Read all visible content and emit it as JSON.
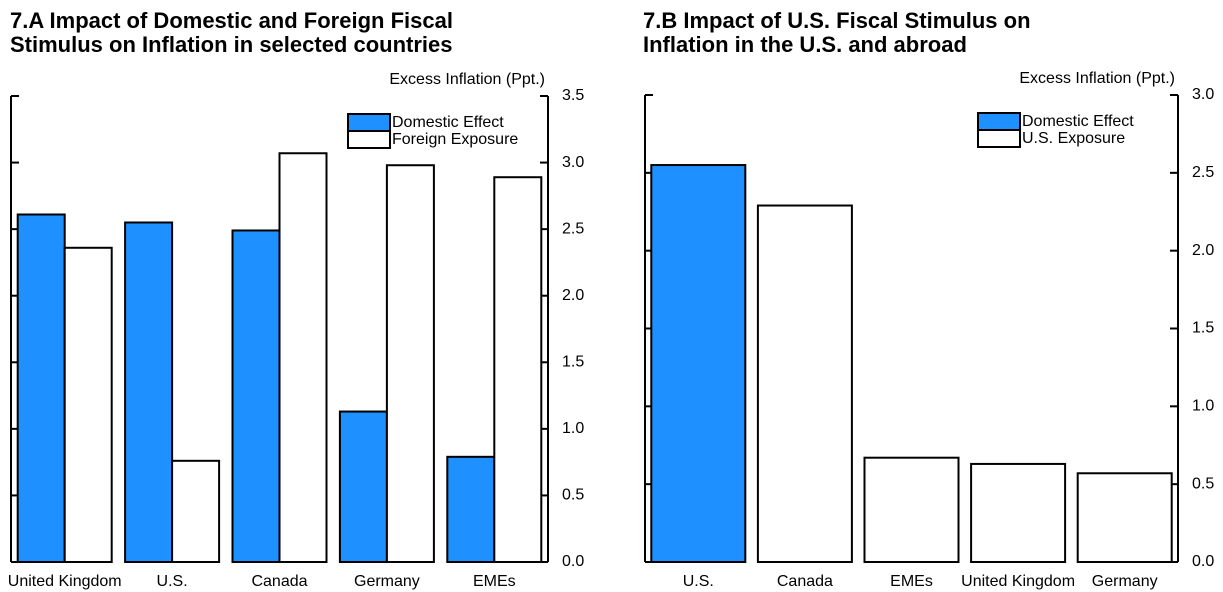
{
  "chart_data": [
    {
      "type": "bar",
      "title": [
        "7.A Impact of Domestic and Foreign Fiscal",
        "Stimulus on Inflation in selected countries"
      ],
      "ylabel": "Excess Inflation (Ppt.)",
      "categories": [
        "United Kingdom",
        "U.S.",
        "Canada",
        "Germany",
        "EMEs"
      ],
      "series": [
        {
          "name": "Domestic Effect",
          "color": "#1e90ff",
          "values": [
            2.61,
            2.55,
            2.49,
            1.13,
            0.79
          ]
        },
        {
          "name": "Foreign Exposure",
          "color": "#ffffff",
          "values": [
            2.36,
            0.76,
            3.07,
            2.98,
            2.89
          ]
        }
      ],
      "ylim": [
        0,
        3.5
      ],
      "yticks": [
        {
          "value": 0,
          "label": "0.0"
        },
        0.5,
        {
          "value": 1,
          "label": "1.0"
        },
        1.5,
        {
          "value": 2,
          "label": "2.0"
        },
        2.5,
        {
          "value": 3,
          "label": "3.0"
        },
        3.5
      ],
      "legend": "upper right"
    },
    {
      "type": "bar",
      "title": [
        "7.B Impact of U.S. Fiscal Stimulus on",
        "Inflation in the U.S. and abroad"
      ],
      "ylabel": "Excess Inflation (Ppt.)",
      "categories": [
        "U.S.",
        "Canada",
        "EMEs",
        "United Kingdom",
        "Germany"
      ],
      "series": [
        {
          "name": "Domestic Effect",
          "color": "#1e90ff",
          "values": [
            2.55,
            null,
            null,
            null,
            null
          ]
        },
        {
          "name": "U.S. Exposure",
          "color": "#ffffff",
          "values": [
            null,
            2.29,
            0.67,
            0.63,
            0.57
          ]
        }
      ],
      "ylim": [
        0,
        3
      ],
      "yticks": [
        {
          "value": 0,
          "label": "0.0"
        },
        0.5,
        {
          "value": 1,
          "label": "1.0"
        },
        1.5,
        {
          "value": 2,
          "label": "2.0"
        },
        2.5,
        {
          "value": 3,
          "label": "3.0"
        }
      ],
      "legend": "upper right"
    }
  ]
}
